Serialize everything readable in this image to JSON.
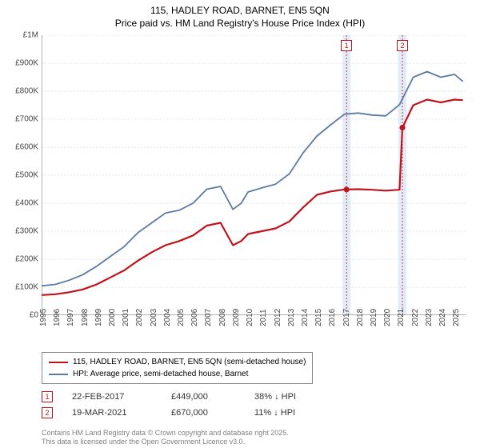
{
  "title_line1": "115, HADLEY ROAD, BARNET, EN5 5QN",
  "title_line2": "Price paid vs. HM Land Registry's House Price Index (HPI)",
  "chart": {
    "type": "line",
    "background_color": "#ffffff",
    "grid_color": "#c8c8c8",
    "axis_color": "#666666",
    "xlim": [
      1995,
      2025.8
    ],
    "ylim": [
      0,
      1000000
    ],
    "ytick_step": 100000,
    "ytick_labels": [
      "£0",
      "£100K",
      "£200K",
      "£300K",
      "£400K",
      "£500K",
      "£600K",
      "£700K",
      "£800K",
      "£900K",
      "£1M"
    ],
    "xtick_step": 1,
    "xtick_labels": [
      "1995",
      "1996",
      "1997",
      "1998",
      "1999",
      "2000",
      "2001",
      "2002",
      "2003",
      "2004",
      "2005",
      "2006",
      "2007",
      "2008",
      "2009",
      "2010",
      "2011",
      "2012",
      "2013",
      "2014",
      "2015",
      "2016",
      "2017",
      "2018",
      "2019",
      "2020",
      "2021",
      "2022",
      "2023",
      "2024",
      "2025"
    ],
    "series": [
      {
        "name": "price_paid",
        "color": "#c0141b",
        "width": 2.2,
        "x": [
          1995,
          1996,
          1997,
          1998,
          1999,
          2000,
          2001,
          2002,
          2003,
          2004,
          2005,
          2006,
          2007,
          2008,
          2008.9,
          2009.5,
          2010,
          2011,
          2012,
          2013,
          2014,
          2015,
          2016,
          2017,
          2017.15,
          2018,
          2019,
          2020,
          2021,
          2021.21,
          2022,
          2023,
          2024,
          2025,
          2025.6
        ],
        "y": [
          72000,
          75000,
          82000,
          92000,
          110000,
          135000,
          160000,
          195000,
          225000,
          250000,
          265000,
          285000,
          320000,
          330000,
          250000,
          265000,
          290000,
          300000,
          310000,
          335000,
          385000,
          430000,
          442000,
          449000,
          449000,
          450000,
          448000,
          445000,
          448000,
          670000,
          750000,
          770000,
          760000,
          770000,
          768000
        ]
      },
      {
        "name": "hpi",
        "color": "#5a7aa8",
        "width": 1.8,
        "x": [
          1995,
          1996,
          1997,
          1998,
          1999,
          2000,
          2001,
          2002,
          2003,
          2004,
          2005,
          2006,
          2007,
          2008,
          2008.9,
          2009.5,
          2010,
          2011,
          2012,
          2013,
          2014,
          2015,
          2016,
          2017,
          2018,
          2019,
          2020,
          2021,
          2022,
          2023,
          2024,
          2025,
          2025.6
        ],
        "y": [
          105000,
          110000,
          125000,
          145000,
          175000,
          210000,
          245000,
          295000,
          330000,
          365000,
          375000,
          400000,
          450000,
          460000,
          378000,
          400000,
          440000,
          455000,
          468000,
          505000,
          580000,
          640000,
          680000,
          718000,
          722000,
          715000,
          712000,
          752000,
          850000,
          870000,
          850000,
          860000,
          835000
        ]
      }
    ],
    "sale_markers": [
      {
        "label": "1",
        "x": 2017.15,
        "y": 449000,
        "color": "#c0141b"
      },
      {
        "label": "2",
        "x": 2021.21,
        "y": 670000,
        "color": "#c0141b"
      }
    ],
    "sale_bands": [
      {
        "x": 2017.15,
        "color": "#c0141b"
      },
      {
        "x": 2021.21,
        "color": "#c0141b"
      }
    ]
  },
  "legend": {
    "items": [
      {
        "color": "#c0141b",
        "label": "115, HADLEY ROAD, BARNET, EN5 5QN (semi-detached house)"
      },
      {
        "color": "#5a7aa8",
        "label": "HPI: Average price, semi-detached house, Barnet"
      }
    ]
  },
  "sales": [
    {
      "marker": "1",
      "marker_color": "#c0141b",
      "date": "22-FEB-2017",
      "price": "£449,000",
      "diff": "38% ↓ HPI"
    },
    {
      "marker": "2",
      "marker_color": "#c0141b",
      "date": "19-MAR-2021",
      "price": "£670,000",
      "diff": "11% ↓ HPI"
    }
  ],
  "footer_line1": "Contains HM Land Registry data © Crown copyright and database right 2025.",
  "footer_line2": "This data is licensed under the Open Government Licence v3.0.",
  "label_fontsize": 10,
  "title_fontsize": 12
}
